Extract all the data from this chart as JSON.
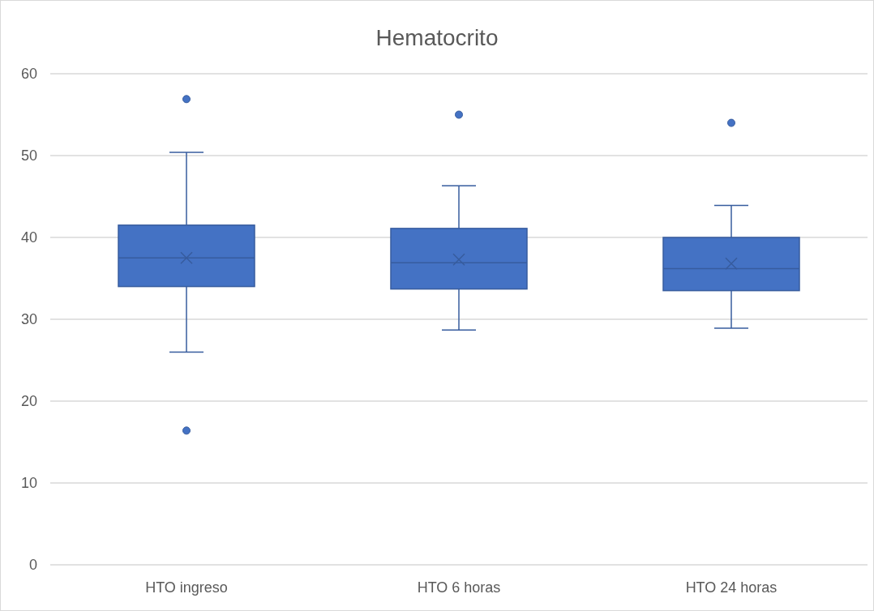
{
  "chart_data": {
    "type": "box",
    "title": "Hematocrito",
    "categories": [
      "HTO ingreso",
      "HTO 6 horas",
      "HTO 24 horas"
    ],
    "boxes": [
      {
        "low": 26.0,
        "q1": 34.0,
        "median": 37.5,
        "q3": 41.5,
        "high": 50.4,
        "mean": 37.5,
        "outliers": [
          56.9,
          16.4
        ]
      },
      {
        "low": 28.7,
        "q1": 33.7,
        "median": 36.9,
        "q3": 41.1,
        "high": 46.3,
        "mean": 37.3,
        "outliers": [
          55.0
        ]
      },
      {
        "low": 28.9,
        "q1": 33.5,
        "median": 36.2,
        "q3": 40.0,
        "high": 43.9,
        "mean": 36.8,
        "outliers": [
          54.0
        ]
      }
    ],
    "color": "#4472c4",
    "ylim": [
      0,
      60
    ],
    "yticks": [
      0,
      10,
      20,
      30,
      40,
      50,
      60
    ],
    "grid": "y"
  }
}
